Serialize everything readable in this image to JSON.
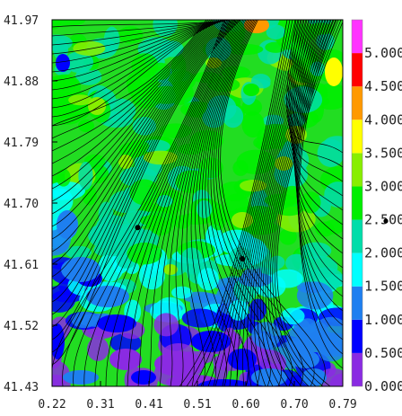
{
  "chart_data": {
    "type": "heatmap",
    "title": "",
    "xlabel": "",
    "ylabel": "",
    "xlim": [
      0.22,
      0.79
    ],
    "ylim": [
      41.43,
      41.97
    ],
    "x_ticks": [
      "0.22",
      "0.31",
      "0.41",
      "0.51",
      "0.60",
      "0.70",
      "0.79"
    ],
    "y_ticks": [
      "41.43",
      "41.52",
      "41.61",
      "41.70",
      "41.79",
      "41.88",
      "41.97"
    ],
    "colorbar": {
      "range": [
        0.0,
        5.5
      ],
      "labels": [
        "0.000",
        "0.500",
        "1.000",
        "1.500",
        "2.000",
        "2.500",
        "3.000",
        "3.500",
        "4.000",
        "4.500",
        "5.000"
      ],
      "colors": [
        "#8a2be2",
        "#0000ff",
        "#1e7ff0",
        "#00ffff",
        "#00ddaa",
        "#00ee00",
        "#88ee00",
        "#ffff00",
        "#ff9900",
        "#ff0000",
        "#ff33ff"
      ]
    },
    "markers": [
      {
        "x": 0.388,
        "y": 41.664
      },
      {
        "x": 0.593,
        "y": 41.618
      }
    ],
    "overlay": "streamlines"
  }
}
